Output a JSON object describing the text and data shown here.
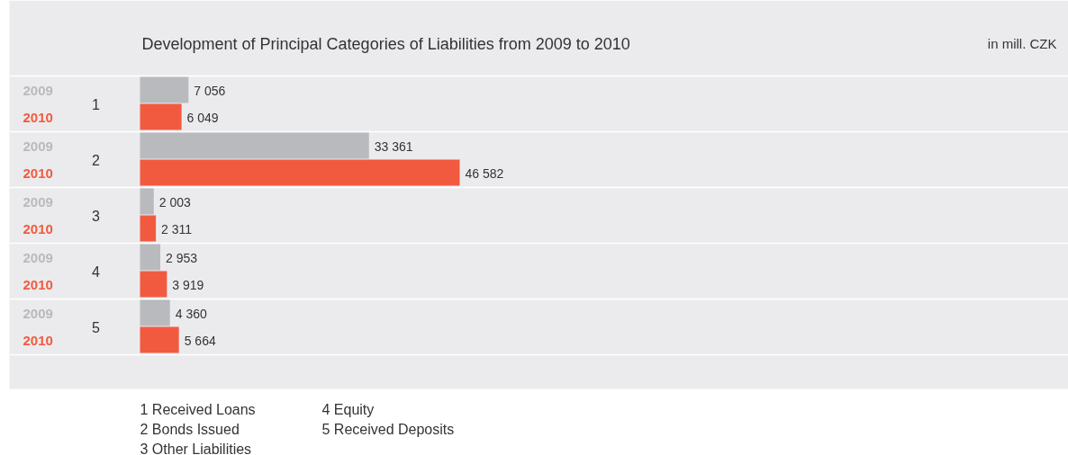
{
  "chart_data": {
    "type": "bar",
    "orientation": "horizontal",
    "title": "Development of Principal Categories of Liabilities from 2009 to 2010",
    "subtitle": "in mill. CZK",
    "categories": [
      "1",
      "2",
      "3",
      "4",
      "5"
    ],
    "tick_labels": false,
    "series": [
      {
        "name": "2009",
        "color": "#b9babe",
        "values": [
          7056,
          33361,
          2003,
          2953,
          4360
        ],
        "value_labels": [
          "7 056",
          "33 361",
          "2 003",
          "2 953",
          "4 360"
        ]
      },
      {
        "name": "2010",
        "color": "#f25a3f",
        "values": [
          6049,
          46582,
          2311,
          3919,
          5664
        ],
        "value_labels": [
          "6 049",
          "46 582",
          "2 311",
          "3 919",
          "5 664"
        ]
      }
    ],
    "annotations": [
      "1  Received Loans",
      "2  Bonds Issued",
      "3  Other Liabilities",
      "4  Equity",
      "5  Received Deposits"
    ]
  }
}
